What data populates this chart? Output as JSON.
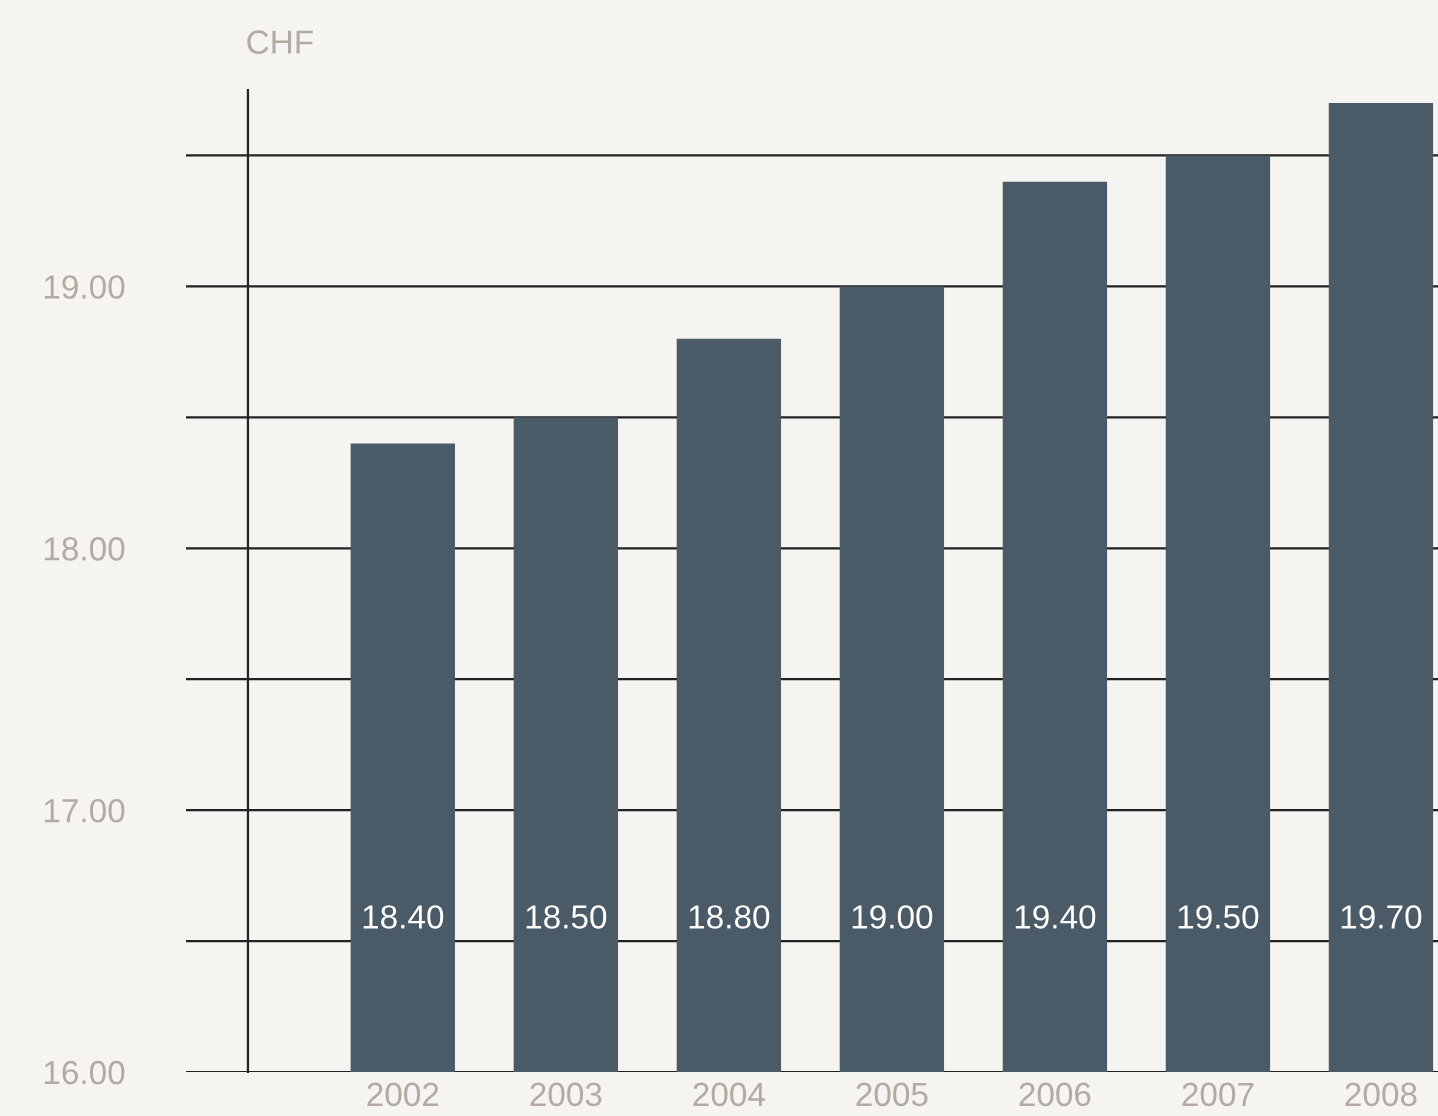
{
  "chart_data": {
    "type": "bar",
    "ylabel": "CHF",
    "categories": [
      "2002",
      "2003",
      "2004",
      "2005",
      "2006",
      "2007",
      "2008"
    ],
    "values": [
      18.4,
      18.5,
      18.8,
      19.0,
      19.4,
      19.5,
      19.7
    ],
    "value_labels": [
      "18.40",
      "18.50",
      "18.80",
      "19.00",
      "19.40",
      "19.50",
      "19.70"
    ],
    "color": "#4a5a66",
    "ylim": [
      16,
      19.75
    ],
    "yticks": [
      {
        "value": 16,
        "label": "16.00"
      },
      {
        "value": 16.5,
        "label": null
      },
      {
        "value": 17,
        "label": "17.00"
      },
      {
        "value": 17.5,
        "label": null
      },
      {
        "value": 18,
        "label": "18.00"
      },
      {
        "value": 18.5,
        "label": null
      },
      {
        "value": 19,
        "label": "19.00"
      },
      {
        "value": 19.5,
        "label": null
      }
    ],
    "grid": "y",
    "legend": false
  }
}
